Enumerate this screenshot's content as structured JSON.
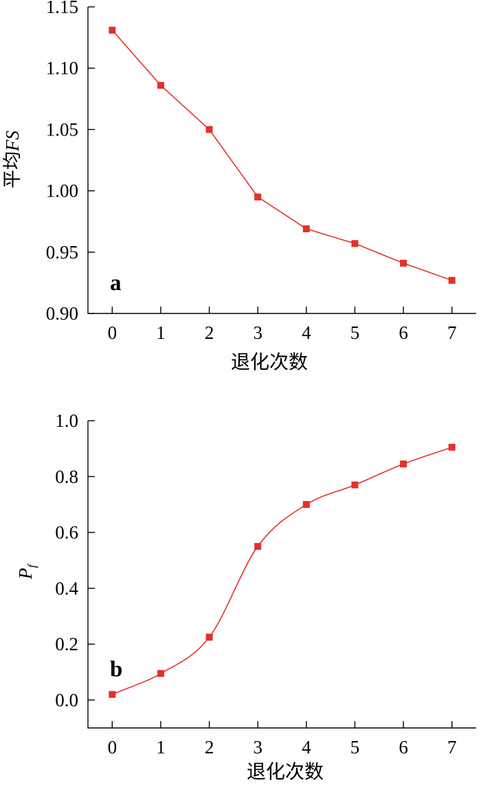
{
  "chart_data": [
    {
      "type": "line",
      "panel_label": "a",
      "x": [
        0,
        1,
        2,
        3,
        4,
        5,
        6,
        7
      ],
      "x_tick_labels": [
        "0",
        "1",
        "2",
        "3",
        "4",
        "5",
        "6",
        "7"
      ],
      "xlabel": "退化次数",
      "ylabel_prefix": "平均",
      "ylabel_italic": "FS",
      "ylim": [
        0.9,
        1.15
      ],
      "y_ticks": [
        0.9,
        0.95,
        1.0,
        1.05,
        1.1,
        1.15
      ],
      "y_tick_labels": [
        "0.90",
        "0.95",
        "1.00",
        "1.05",
        "1.10",
        "1.15"
      ],
      "curve": "straight",
      "color": "#e2322a",
      "series": [
        {
          "values": [
            1.131,
            1.086,
            1.05,
            0.995,
            0.969,
            0.957,
            0.941,
            0.927
          ]
        }
      ]
    },
    {
      "type": "line",
      "panel_label": "b",
      "x": [
        0,
        1,
        2,
        3,
        4,
        5,
        6,
        7
      ],
      "x_tick_labels": [
        "0",
        "1",
        "2",
        "3",
        "4",
        "5",
        "6",
        "7"
      ],
      "xlabel": "退化次数",
      "ylabel_main": "P",
      "ylabel_sub": "f",
      "ylim": [
        -0.1,
        1.0
      ],
      "y_ticks": [
        0.0,
        0.2,
        0.4,
        0.6,
        0.8,
        1.0
      ],
      "y_tick_labels": [
        "0.0",
        "0.2",
        "0.4",
        "0.6",
        "0.8",
        "1.0"
      ],
      "curve": "smooth",
      "color": "#e2322a",
      "series": [
        {
          "values": [
            0.02,
            0.095,
            0.225,
            0.55,
            0.7,
            0.77,
            0.845,
            0.905
          ]
        }
      ]
    }
  ]
}
